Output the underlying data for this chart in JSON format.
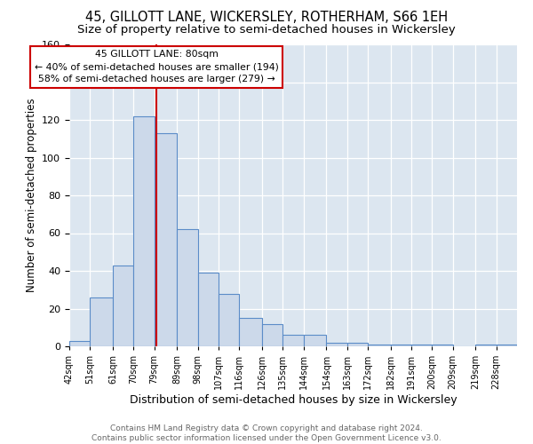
{
  "title1": "45, GILLOTT LANE, WICKERSLEY, ROTHERHAM, S66 1EH",
  "title2": "Size of property relative to semi-detached houses in Wickersley",
  "xlabel": "Distribution of semi-detached houses by size in Wickersley",
  "ylabel": "Number of semi-detached properties",
  "annotation_line1": "45 GILLOTT LANE: 80sqm",
  "annotation_line2": "← 40% of semi-detached houses are smaller (194)",
  "annotation_line3": "58% of semi-detached houses are larger (279) →",
  "footer1": "Contains HM Land Registry data © Crown copyright and database right 2024.",
  "footer2": "Contains public sector information licensed under the Open Government Licence v3.0.",
  "bar_labels": [
    "42sqm",
    "51sqm",
    "61sqm",
    "70sqm",
    "79sqm",
    "89sqm",
    "98sqm",
    "107sqm",
    "116sqm",
    "126sqm",
    "135sqm",
    "144sqm",
    "154sqm",
    "163sqm",
    "172sqm",
    "182sqm",
    "191sqm",
    "200sqm",
    "209sqm",
    "219sqm",
    "228sqm"
  ],
  "bar_edges": [
    42,
    51,
    61,
    70,
    79,
    89,
    98,
    107,
    116,
    126,
    135,
    144,
    154,
    163,
    172,
    182,
    191,
    200,
    209,
    219,
    228,
    237
  ],
  "bar_heights": [
    3,
    26,
    43,
    122,
    113,
    62,
    39,
    28,
    15,
    12,
    6,
    6,
    2,
    2,
    1,
    1,
    1,
    1,
    0,
    1,
    1
  ],
  "bar_color": "#ccd9ea",
  "bar_edge_color": "#5b8cc8",
  "red_line_x": 80,
  "ylim": [
    0,
    160
  ],
  "yticks": [
    0,
    20,
    40,
    60,
    80,
    100,
    120,
    140,
    160
  ],
  "bg_color": "#dce6f0",
  "annotation_box_facecolor": "#ffffff",
  "annotation_box_edgecolor": "#cc0000",
  "title1_fontsize": 10.5,
  "title2_fontsize": 9.5,
  "xlabel_fontsize": 9,
  "ylabel_fontsize": 8.5,
  "footer_fontsize": 6.5
}
